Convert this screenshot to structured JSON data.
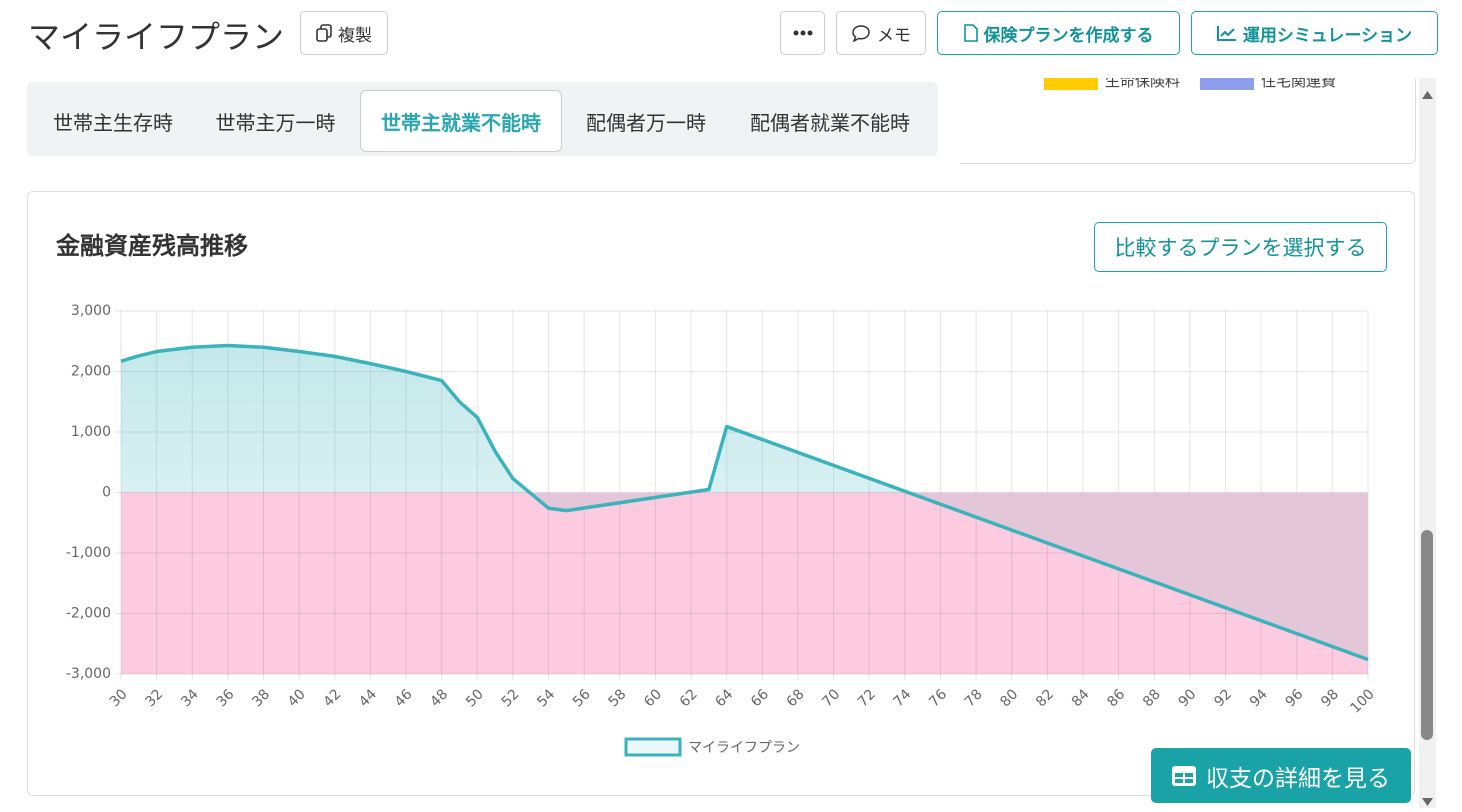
{
  "header": {
    "title": "マイライフプラン",
    "buttons": [
      "複製",
      "メモ",
      "保険プランを作成する",
      "運用シミュレーション"
    ]
  },
  "tabs": {
    "items": [
      "世帯主生存時",
      "世帯主万一時",
      "世帯主就業不能時",
      "配偶者万一時",
      "配偶者就業不能時"
    ],
    "active": 2
  },
  "top_legend": [
    {
      "name": "生命保険料",
      "color": "#ffcc00"
    },
    {
      "name": "住宅関連費",
      "color": "#8f9ded"
    }
  ],
  "card": {
    "title": "金融資産残高推移",
    "compare_button": "比較するプランを選択する"
  },
  "chart_data": {
    "type": "line",
    "x": [
      30,
      31,
      32,
      34,
      36,
      38,
      40,
      42,
      44,
      46,
      48,
      49,
      50,
      51,
      52,
      54,
      55,
      63,
      64,
      100
    ],
    "series": [
      {
        "name": "マイライフプラン",
        "color": "#3ab3bb",
        "values": [
          2170,
          2260,
          2330,
          2400,
          2430,
          2400,
          2330,
          2250,
          2130,
          2000,
          1850,
          1500,
          1240,
          680,
          230,
          -260,
          -300,
          50,
          1090,
          -2760
        ]
      }
    ],
    "xlim": [
      30,
      100
    ],
    "xticks": [
      30,
      32,
      34,
      36,
      38,
      40,
      42,
      44,
      46,
      48,
      50,
      52,
      54,
      56,
      58,
      60,
      62,
      64,
      66,
      68,
      70,
      72,
      74,
      76,
      78,
      80,
      82,
      84,
      86,
      88,
      90,
      92,
      94,
      96,
      98,
      100
    ],
    "ylim": [
      -3000,
      3000
    ],
    "yticks": [
      {
        "value": -3000,
        "label": "-3,000"
      },
      {
        "value": -2000,
        "label": "-2,000"
      },
      {
        "value": -1000,
        "label": "-1,000"
      },
      0,
      {
        "value": 1000,
        "label": "1,000"
      },
      {
        "value": 2000,
        "label": "2,000"
      },
      {
        "value": 3000,
        "label": "3,000"
      }
    ],
    "grid": true,
    "fill_positive": "#3ab3bb",
    "fill_negative": "#e3c6d8",
    "negative_background": "#fdcbe0"
  },
  "detail_button": "収支の詳細を見る"
}
